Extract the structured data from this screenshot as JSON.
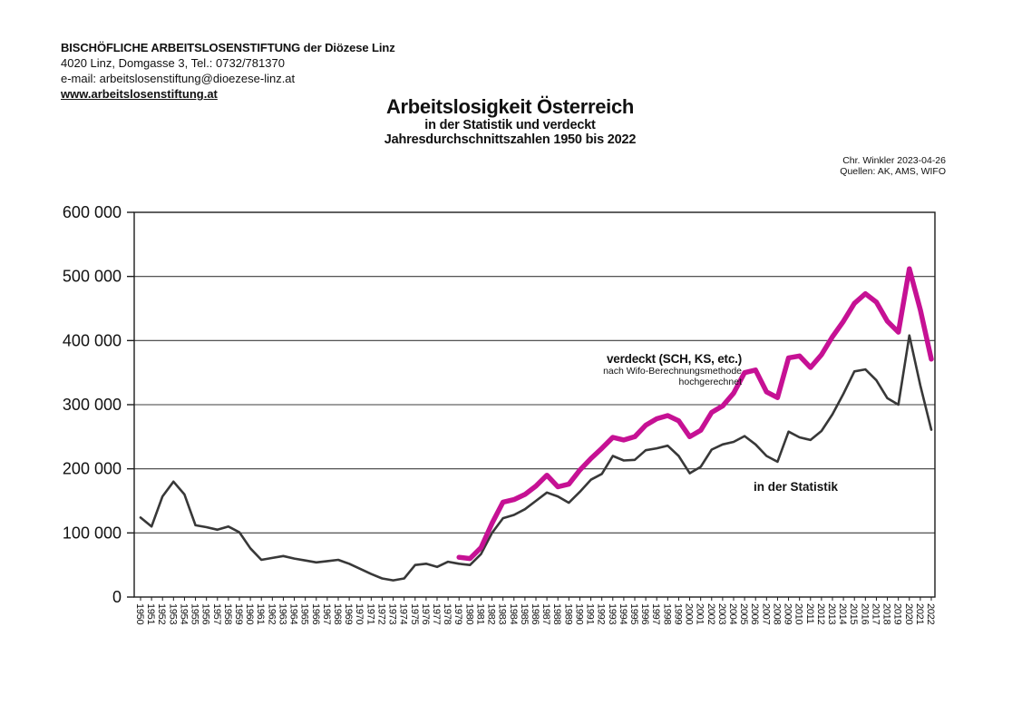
{
  "header": {
    "org_name": "BISCHÖFLICHE ARBEITSLOSENSTIFTUNG der Diözese Linz",
    "address": "4020 Linz, Domgasse 3, Tel.: 0732/781370",
    "email_line": "e-mail: arbeitslosenstiftung@dioezese-linz.at",
    "website": "www.arbeitslosenstiftung.at"
  },
  "title_block": {
    "title": "Arbeitslosigkeit Österreich",
    "subtitle1": "in der Statistik und verdeckt",
    "subtitle2": "Jahresdurchschnittszahlen 1950 bis 2022"
  },
  "attribution": {
    "author_date": "Chr. Winkler 2023-04-26",
    "sources": "Quellen: AK, AMS, WIFO"
  },
  "chart_data": {
    "type": "line",
    "title": "Arbeitslosigkeit Österreich in der Statistik und verdeckt, Jahresdurchschnittszahlen 1950 bis 2022",
    "xlabel": "",
    "ylabel": "",
    "grid": true,
    "legend_position": "inline-annotations",
    "xlim": [
      1950,
      2022
    ],
    "ylim": [
      0,
      600000
    ],
    "yticks": [
      0,
      100000,
      200000,
      300000,
      400000,
      500000,
      600000
    ],
    "ytick_labels": [
      "0",
      "100 000",
      "200 000",
      "300 000",
      "400 000",
      "500 000",
      "600 000"
    ],
    "axis_color": "#1c1c1c",
    "grid_color": "#3d3d3d",
    "x": [
      1950,
      1951,
      1952,
      1953,
      1954,
      1955,
      1956,
      1957,
      1958,
      1959,
      1960,
      1961,
      1962,
      1963,
      1964,
      1965,
      1966,
      1967,
      1968,
      1969,
      1970,
      1971,
      1972,
      1973,
      1974,
      1975,
      1976,
      1977,
      1978,
      1979,
      1980,
      1981,
      1982,
      1983,
      1984,
      1985,
      1986,
      1987,
      1988,
      1989,
      1990,
      1991,
      1992,
      1993,
      1994,
      1995,
      1996,
      1997,
      1998,
      1999,
      2000,
      2001,
      2002,
      2003,
      2004,
      2005,
      2006,
      2007,
      2008,
      2009,
      2010,
      2011,
      2012,
      2013,
      2014,
      2015,
      2016,
      2017,
      2018,
      2019,
      2020,
      2021,
      2022
    ],
    "series": [
      {
        "name": "in der Statistik",
        "color": "#383838",
        "start_year": 1950,
        "values": [
          124000,
          110000,
          157000,
          180000,
          160000,
          112000,
          109000,
          105000,
          110000,
          101000,
          76000,
          58000,
          61000,
          64000,
          60000,
          57000,
          54000,
          56000,
          58000,
          52000,
          44000,
          36000,
          29000,
          26000,
          29000,
          50000,
          52000,
          47000,
          55000,
          52000,
          50000,
          67000,
          100000,
          123000,
          128000,
          137000,
          150000,
          163000,
          157000,
          147000,
          164000,
          183000,
          192000,
          220000,
          213000,
          214000,
          229000,
          232000,
          236000,
          220000,
          193000,
          203000,
          230000,
          238000,
          242000,
          251000,
          238000,
          220000,
          211000,
          258000,
          249000,
          245000,
          259000,
          285000,
          317000,
          352000,
          355000,
          338000,
          310000,
          300000,
          408000,
          330000,
          261000
        ]
      },
      {
        "name": "verdeckt (SCH, KS, etc.) nach Wifo-Berechnungsmethode hochgerechnet",
        "color": "#c61194",
        "start_year": 1979,
        "values": [
          62000,
          60000,
          77000,
          115000,
          148000,
          152000,
          160000,
          173000,
          190000,
          172000,
          176000,
          198000,
          216000,
          232000,
          249000,
          245000,
          250000,
          268000,
          278000,
          283000,
          275000,
          250000,
          260000,
          288000,
          298000,
          318000,
          350000,
          354000,
          320000,
          311000,
          373000,
          376000,
          358000,
          378000,
          406000,
          430000,
          458000,
          473000,
          460000,
          430000,
          413000,
          512000,
          448000,
          371000
        ]
      }
    ],
    "annotations": {
      "verdeckt": {
        "line1": "verdeckt (SCH, KS, etc.)",
        "line2": "nach Wifo-Berechnungsmethode",
        "line3": "hochgerechnet"
      },
      "statistik": "in der Statistik"
    }
  }
}
